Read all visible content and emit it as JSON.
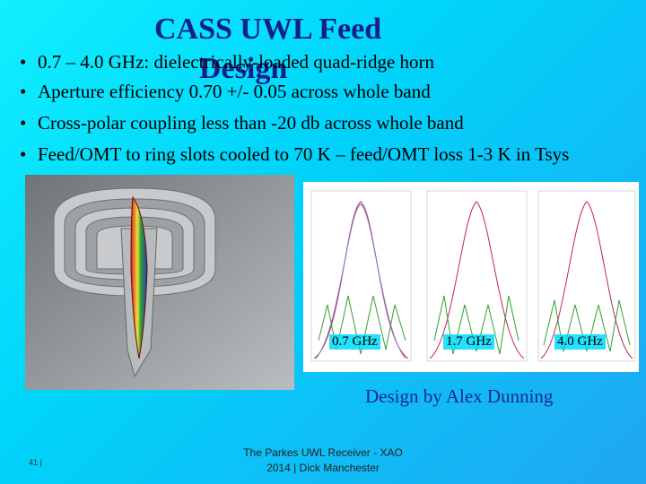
{
  "header": {
    "title_lines": [
      "CASS UWL Feed",
      "Design"
    ]
  },
  "bullets": [
    "0.7 – 4.0 GHz: dielectrically-loaded quad-ridge horn",
    "Aperture efficiency 0.70 +/- 0.05 across whole band",
    "Cross-polar coupling less than -20 db across whole band",
    "Feed/OMT to ring slots cooled to 70 K – feed/OMT loss 1-3 K in Tsys"
  ],
  "figure": {
    "band_labels": [
      "0.7 GHz",
      "1.7 GHz",
      "4.0 GHz"
    ],
    "caption": "Design by Alex Dunning"
  },
  "footer": {
    "lines": [
      "The Parkes UWL Receiver - XAO",
      "2014 | Dick Manchester"
    ],
    "slide_number": "41 |"
  }
}
